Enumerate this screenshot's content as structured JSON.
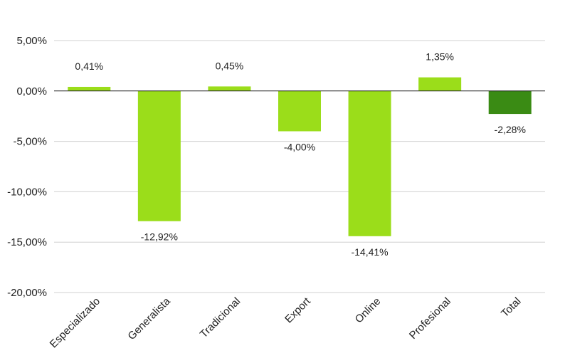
{
  "chart_data": {
    "type": "bar",
    "title": "",
    "xlabel": "",
    "ylabel": "",
    "categories": [
      "Especializado",
      "Generalista",
      "Tradicional",
      "Export",
      "Online",
      "Profesional",
      "Total"
    ],
    "values": [
      0.41,
      -12.92,
      0.45,
      -4.0,
      -14.41,
      1.35,
      -2.28
    ],
    "data_labels": [
      "0,41%",
      "-12,92%",
      "0,45%",
      "-4,00%",
      "-14,41%",
      "1,35%",
      "-2,28%"
    ],
    "ylim": [
      -20,
      5
    ],
    "y_ticks": [
      5,
      0,
      -5,
      -10,
      -15,
      -20
    ],
    "y_tick_labels": [
      "5,00%",
      "0,00%",
      "-5,00%",
      "-10,00%",
      "-15,00%",
      "-20,00%"
    ],
    "grid": true,
    "legend": "none",
    "colors": {
      "bar": "#9bdd1a",
      "total_bar": "#3a8b14",
      "grid": "#d0d0d0",
      "zero_line": "#222222",
      "text": "#222222"
    }
  }
}
